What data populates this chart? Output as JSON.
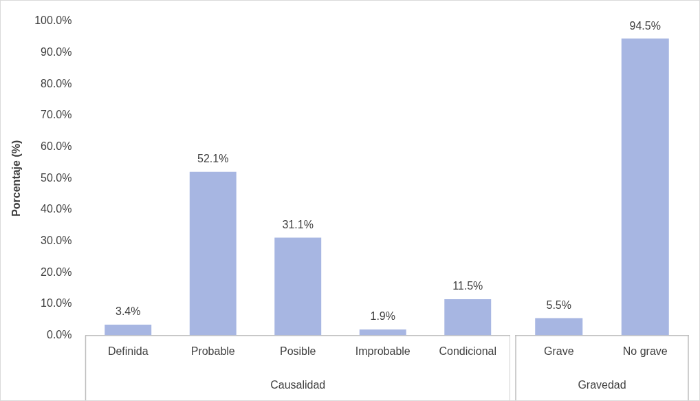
{
  "chart_data": [
    {
      "type": "bar",
      "ylabel": "Porcentaje (%)",
      "xlabel": "Causalidad",
      "categories": [
        "Definida",
        "Probable",
        "Posible",
        "Improbable",
        "Condicional"
      ],
      "values": [
        3.4,
        52.1,
        31.1,
        1.9,
        11.5
      ],
      "value_labels": [
        "3.4%",
        "52.1%",
        "31.1%",
        "1.9%",
        "11.5%"
      ],
      "color": "#a7b6e2",
      "ylim": [
        0,
        100
      ],
      "yticks": [
        {
          "value": 0,
          "label": "0.0%"
        },
        {
          "value": 10,
          "label": "10.0%"
        },
        {
          "value": 20,
          "label": "20.0%"
        },
        {
          "value": 30,
          "label": "30.0%"
        },
        {
          "value": 40,
          "label": "40.0%"
        },
        {
          "value": 50,
          "label": "50.0%"
        },
        {
          "value": 60,
          "label": "60.0%"
        },
        {
          "value": 70,
          "label": "70.0%"
        },
        {
          "value": 80,
          "label": "80.0%"
        },
        {
          "value": 90,
          "label": "90.0%"
        },
        {
          "value": 100,
          "label": "100.0%"
        }
      ],
      "grid": false,
      "legend": false
    },
    {
      "type": "bar",
      "xlabel": "Gravedad",
      "categories": [
        "Grave",
        "No grave"
      ],
      "values": [
        5.5,
        94.5
      ],
      "value_labels": [
        "5.5%",
        "94.5%"
      ],
      "color": "#a7b6e2",
      "ylim": [
        0,
        100
      ],
      "tick_labels": "x",
      "grid": false,
      "legend": false
    }
  ]
}
